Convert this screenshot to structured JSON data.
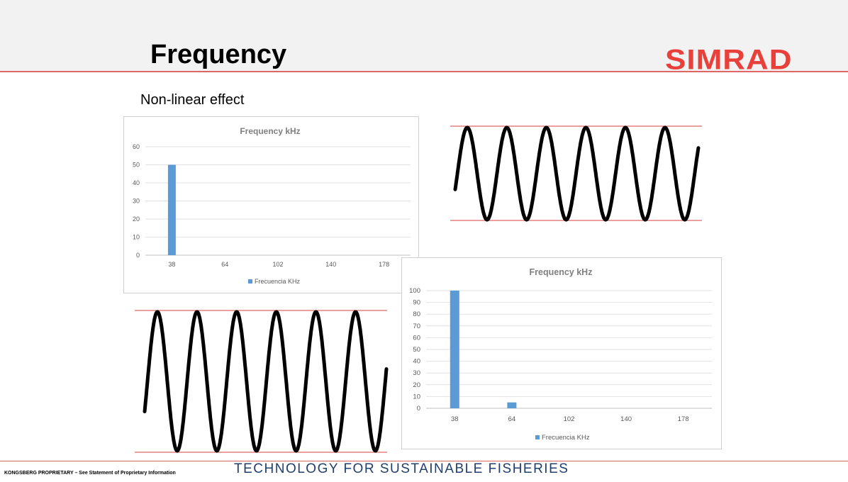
{
  "slide": {
    "title": "Frequency",
    "logo": "SIMRAD",
    "subtitle": "Non-linear effect",
    "footer_left": "KONGSBERG PROPRIETARY – See Statement of Proprietary Information",
    "footer_tagline": "TECHNOLOGY FOR SUSTAINABLE FISHERIES"
  },
  "colors": {
    "accent_red": "#e06666",
    "logo_red": "#e8403a",
    "bar_blue": "#5b9bd5",
    "footer_blue": "#1f3f6e"
  },
  "chart_data": [
    {
      "type": "bar",
      "title": "Frequency kHz",
      "categories": [
        "38",
        "64",
        "102",
        "140",
        "178"
      ],
      "series": [
        {
          "name": "Frecuencia KHz",
          "values": [
            50,
            0,
            0,
            0,
            0
          ]
        }
      ],
      "yticks": [
        0,
        10,
        20,
        30,
        40,
        50,
        60
      ],
      "ylim": [
        0,
        60
      ],
      "grid": true,
      "legend": "bottom"
    },
    {
      "type": "bar",
      "title": "Frequency kHz",
      "categories": [
        "38",
        "64",
        "102",
        "140",
        "178"
      ],
      "series": [
        {
          "name": "Frecuencia KHz",
          "values": [
            100,
            5,
            0,
            0,
            0
          ]
        }
      ],
      "yticks": [
        0,
        10,
        20,
        30,
        40,
        50,
        60,
        70,
        80,
        90,
        100
      ],
      "ylim": [
        0,
        100
      ],
      "grid": true,
      "legend": "bottom"
    }
  ]
}
